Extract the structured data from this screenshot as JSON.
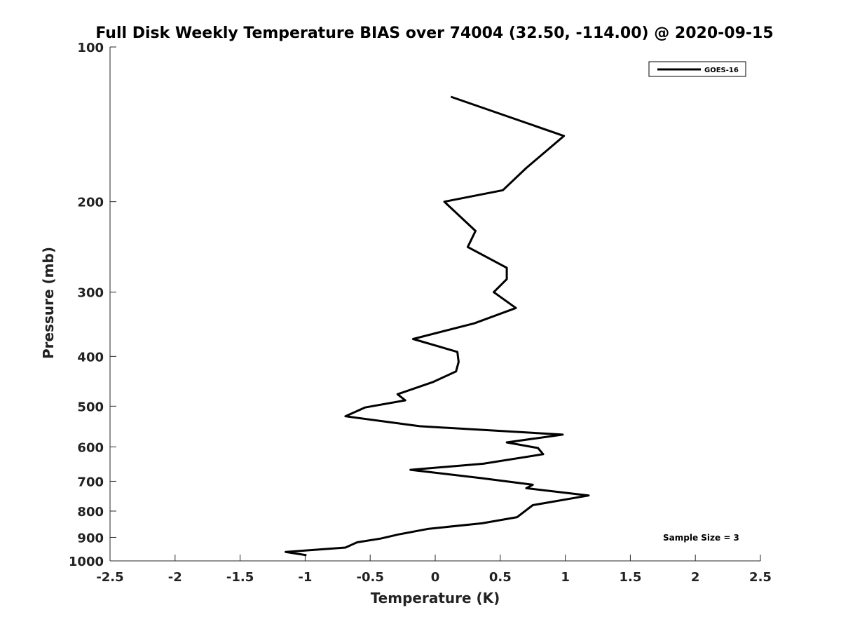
{
  "chart_data": {
    "type": "line",
    "title": "Full Disk Weekly Temperature BIAS over 74004 (32.50, -114.00) @ 2020-09-15",
    "xlabel": "Temperature (K)",
    "ylabel": "Pressure (mb)",
    "xlim": [
      -2.5,
      2.5
    ],
    "ylim": [
      100,
      1000
    ],
    "y_scale": "log",
    "y_reversed": true,
    "grid": false,
    "legend_position": "top-right",
    "x_ticks": [
      -2.5,
      -2,
      -1.5,
      -1,
      -0.5,
      0,
      0.5,
      1,
      1.5,
      2,
      2.5
    ],
    "x_tick_labels": [
      "-2.5",
      "-2",
      "-1.5",
      "-1",
      "-0.5",
      "0",
      "0.5",
      "1",
      "1.5",
      "2",
      "2.5"
    ],
    "y_ticks": [
      100,
      200,
      300,
      400,
      500,
      600,
      700,
      800,
      900,
      1000
    ],
    "y_tick_labels": [
      "100",
      "200",
      "300",
      "400",
      "500",
      "600",
      "700",
      "800",
      "900",
      "1000"
    ],
    "annotation": "Sample Size = 3",
    "series": [
      {
        "name": "GOES-16",
        "color": "#000000",
        "points": [
          [
            0.12,
            125
          ],
          [
            0.99,
            149
          ],
          [
            0.7,
            172
          ],
          [
            0.52,
            190
          ],
          [
            0.07,
            200
          ],
          [
            0.31,
            228
          ],
          [
            0.25,
            245
          ],
          [
            0.55,
            269
          ],
          [
            0.55,
            283
          ],
          [
            0.45,
            300
          ],
          [
            0.62,
            322
          ],
          [
            0.3,
            345
          ],
          [
            -0.17,
            370
          ],
          [
            0.17,
            392
          ],
          [
            0.18,
            410
          ],
          [
            0.16,
            428
          ],
          [
            -0.02,
            449
          ],
          [
            -0.29,
            474
          ],
          [
            -0.23,
            487
          ],
          [
            -0.54,
            503
          ],
          [
            -0.69,
            523
          ],
          [
            -0.12,
            547
          ],
          [
            0.98,
            568
          ],
          [
            0.55,
            588
          ],
          [
            0.79,
            603
          ],
          [
            0.83,
            620
          ],
          [
            0.37,
            647
          ],
          [
            -0.19,
            665
          ],
          [
            0.35,
            690
          ],
          [
            0.75,
            711
          ],
          [
            0.7,
            722
          ],
          [
            1.18,
            746
          ],
          [
            0.75,
            779
          ],
          [
            0.63,
            822
          ],
          [
            0.36,
            845
          ],
          [
            -0.05,
            866
          ],
          [
            -0.28,
            888
          ],
          [
            -0.42,
            905
          ],
          [
            -0.6,
            920
          ],
          [
            -0.69,
            942
          ],
          [
            -1.15,
            961
          ],
          [
            -0.99,
            975
          ]
        ]
      }
    ]
  }
}
